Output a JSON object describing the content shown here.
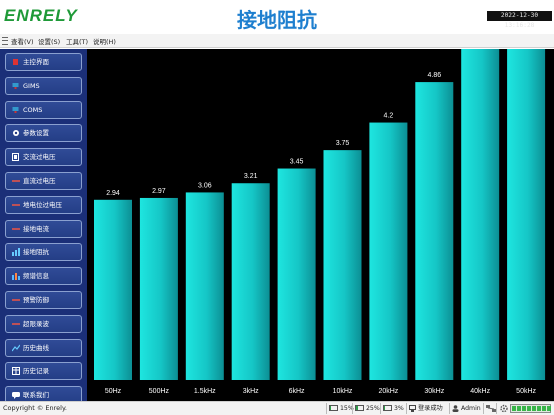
{
  "header": {
    "logo": "ENRELY",
    "title": "接地阻抗",
    "datetime": "2022-12-30  13:16:28"
  },
  "menubar": {
    "items": [
      "查看(V)",
      "设置(S)",
      "工具(T)",
      "说明(H)"
    ]
  },
  "sidebar": {
    "items": [
      {
        "label": "主控界面",
        "icon": "home-icon"
      },
      {
        "label": "GIMS",
        "icon": "monitor-icon"
      },
      {
        "label": "COMS",
        "icon": "monitor-icon"
      },
      {
        "label": "参数设置",
        "icon": "gear-icon"
      },
      {
        "label": "交流过电压",
        "icon": "chip-icon"
      },
      {
        "label": "直流过电压",
        "icon": "waveform-icon"
      },
      {
        "label": "地电位过电压",
        "icon": "waveform-icon"
      },
      {
        "label": "接地电流",
        "icon": "waveform-icon"
      },
      {
        "label": "接地阻抗",
        "icon": "bar-chart-icon"
      },
      {
        "label": "频谱信息",
        "icon": "spectrum-icon"
      },
      {
        "label": "预警防御",
        "icon": "waveform-icon"
      },
      {
        "label": "超限录波",
        "icon": "waveform-icon"
      },
      {
        "label": "历史曲线",
        "icon": "line-chart-icon"
      },
      {
        "label": "历史记录",
        "icon": "table-icon"
      },
      {
        "label": "联系我们",
        "icon": "chat-icon"
      }
    ]
  },
  "chart_data": {
    "type": "bar",
    "categories": [
      "50Hz",
      "500Hz",
      "1.5kHz",
      "3kHz",
      "6kHz",
      "10kHz",
      "20kHz",
      "30kHz",
      "40kHz",
      "50kHz"
    ],
    "values": [
      2.94,
      2.97,
      3.06,
      3.21,
      3.45,
      3.75,
      4.2,
      4.86,
      null,
      null
    ],
    "value_labels": [
      "2.94",
      "2.97",
      "3.06",
      "3.21",
      "3.45",
      "3.75",
      "4.2",
      "4.86",
      "",
      ""
    ],
    "title": "",
    "xlabel": "",
    "ylabel": "",
    "ylim": [
      0,
      5.4
    ],
    "grid": false,
    "bar_color": "#16d8d8",
    "background": "#000000"
  },
  "statusbar": {
    "copyright": "Copyright © Enrely.",
    "cpu": "15%",
    "memory": "25%",
    "disk": "3%",
    "login_status": "登录成功",
    "user": "Admin"
  }
}
